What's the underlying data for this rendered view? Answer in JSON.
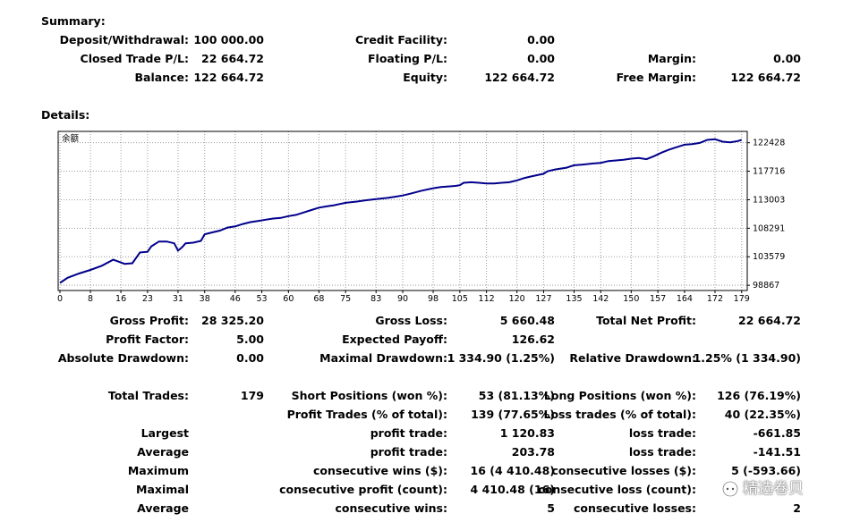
{
  "summary": {
    "title": "Summary:",
    "deposit_label": "Deposit/Withdrawal:",
    "deposit_value": "100 000.00",
    "credit_label": "Credit Facility:",
    "credit_value": "0.00",
    "closed_label": "Closed Trade P/L:",
    "closed_value": "22 664.72",
    "floating_label": "Floating P/L:",
    "floating_value": "0.00",
    "margin_label": "Margin:",
    "margin_value": "0.00",
    "balance_label": "Balance:",
    "balance_value": "122 664.72",
    "equity_label": "Equity:",
    "equity_value": "122 664.72",
    "free_margin_label": "Free Margin:",
    "free_margin_value": "122 664.72"
  },
  "details": {
    "title": "Details:",
    "gross_profit_label": "Gross Profit:",
    "gross_profit_value": "28 325.20",
    "gross_loss_label": "Gross Loss:",
    "gross_loss_value": "5 660.48",
    "total_net_label": "Total Net Profit:",
    "total_net_value": "22 664.72",
    "profit_factor_label": "Profit Factor:",
    "profit_factor_value": "5.00",
    "expected_payoff_label": "Expected Payoff:",
    "expected_payoff_value": "126.62",
    "abs_dd_label": "Absolute Drawdown:",
    "abs_dd_value": "0.00",
    "max_dd_label": "Maximal Drawdown:",
    "max_dd_value": "1 334.90 (1.25%)",
    "rel_dd_label": "Relative Drawdown:",
    "rel_dd_value": "1.25% (1 334.90)",
    "total_trades_label": "Total Trades:",
    "total_trades_value": "179",
    "short_label": "Short Positions (won %):",
    "short_value": "53 (81.13%)",
    "long_label": "Long Positions (won %):",
    "long_value": "126 (76.19%)",
    "profit_trades_label": "Profit Trades (% of total):",
    "profit_trades_value": "139 (77.65%)",
    "loss_trades_label": "Loss trades (% of total):",
    "loss_trades_value": "40 (22.35%)",
    "largest_label": "Largest",
    "largest_profit_label": "profit trade:",
    "largest_profit_value": "1 120.83",
    "largest_loss_label": "loss trade:",
    "largest_loss_value": "-661.85",
    "average_label": "Average",
    "average_profit_label": "profit trade:",
    "average_profit_value": "203.78",
    "average_loss_label": "loss trade:",
    "average_loss_value": "-141.51",
    "maximum_label": "Maximum",
    "max_wins_label": "consecutive wins ($):",
    "max_wins_value": "16 (4 410.48)",
    "max_losses_label": "consecutive losses ($):",
    "max_losses_value": "5 (-593.66)",
    "maximal_label": "Maximal",
    "maximal_profit_label": "consecutive profit (count):",
    "maximal_profit_value": "4 410.48 (16)",
    "maximal_loss_label": "consecutive loss (count):",
    "average2_label": "Average",
    "avg_cons_wins_label": "consecutive wins:",
    "avg_cons_wins_value": "5",
    "avg_cons_losses_label": "consecutive losses:",
    "avg_cons_losses_value": "2"
  },
  "watermark": {
    "text": "精选卷贝",
    "icon": "chat-bubble-icon"
  },
  "chart_data": {
    "type": "line",
    "title": "余额",
    "line_color": "#00008b",
    "grid": true,
    "x_ticks": [
      0,
      8,
      16,
      23,
      31,
      38,
      46,
      53,
      60,
      68,
      75,
      83,
      90,
      98,
      105,
      112,
      120,
      127,
      135,
      142,
      150,
      157,
      164,
      172,
      179
    ],
    "y_ticks": [
      98867,
      103579,
      108291,
      113003,
      117716,
      122428
    ],
    "xlim": [
      0,
      180
    ],
    "ylim": [
      98000,
      124300
    ],
    "x": [
      0,
      2,
      5,
      8,
      11,
      14,
      17,
      19,
      21,
      23,
      24,
      26,
      28,
      30,
      31,
      32,
      33,
      35,
      37,
      38,
      40,
      42,
      44,
      46,
      48,
      50,
      52,
      54,
      56,
      58,
      60,
      62,
      64,
      66,
      68,
      70,
      72,
      75,
      78,
      80,
      83,
      86,
      88,
      90,
      92,
      95,
      98,
      100,
      102,
      104,
      105,
      106,
      108,
      110,
      112,
      114,
      116,
      118,
      120,
      122,
      124,
      127,
      128,
      130,
      133,
      135,
      137,
      140,
      142,
      144,
      146,
      148,
      150,
      152,
      154,
      156,
      158,
      160,
      162,
      164,
      166,
      168,
      170,
      172,
      174,
      176,
      178,
      179
    ],
    "y": [
      99250,
      100100,
      100800,
      101400,
      102100,
      103100,
      102400,
      102500,
      104300,
      104400,
      105300,
      106100,
      106100,
      105800,
      104600,
      105100,
      105800,
      105900,
      106200,
      107300,
      107600,
      107900,
      108400,
      108600,
      109000,
      109300,
      109500,
      109700,
      109900,
      110000,
      110300,
      110500,
      110900,
      111300,
      111700,
      111900,
      112100,
      112500,
      112700,
      112900,
      113100,
      113300,
      113500,
      113700,
      114000,
      114500,
      114900,
      115100,
      115200,
      115300,
      115400,
      115800,
      115900,
      115800,
      115700,
      115700,
      115800,
      115900,
      116200,
      116600,
      116900,
      117300,
      117700,
      118000,
      118300,
      118700,
      118800,
      119000,
      119100,
      119400,
      119500,
      119600,
      119800,
      119900,
      119700,
      120200,
      120800,
      121300,
      121700,
      122100,
      122200,
      122400,
      122900,
      123000,
      122600,
      122500,
      122700,
      122900
    ]
  }
}
